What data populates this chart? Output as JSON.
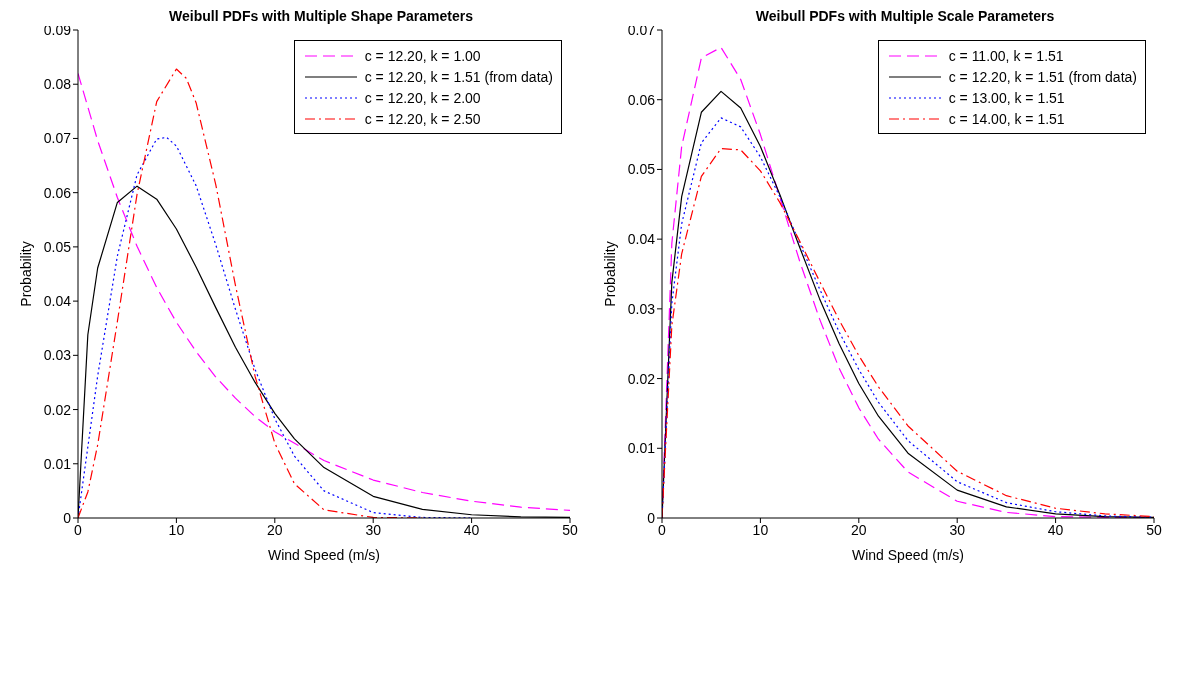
{
  "chart_data": [
    {
      "type": "line",
      "title": "Weibull PDFs with Multiple Shape Parameters",
      "xlabel": "Wind Speed (m/s)",
      "ylabel": "Probability",
      "xlim": [
        0,
        50
      ],
      "xticks": [
        0,
        10,
        20,
        30,
        40,
        50
      ],
      "ylim": [
        0,
        0.09
      ],
      "yticks": [
        0,
        0.01,
        0.02,
        0.03,
        0.04,
        0.05,
        0.06,
        0.07,
        0.08,
        0.09
      ],
      "legend": "top right",
      "marker": "none",
      "series": [
        {
          "name": "c = 12.20, k = 1.00",
          "color": "#ff00ff",
          "line_style": "dashed",
          "x": [
            0,
            2,
            4,
            6,
            8,
            10,
            12,
            14,
            16,
            18,
            20,
            25,
            30,
            35,
            40,
            45,
            50
          ],
          "values": [
            0.082,
            0.0696,
            0.0591,
            0.0501,
            0.0425,
            0.0361,
            0.0307,
            0.026,
            0.0221,
            0.0187,
            0.0159,
            0.0106,
            0.007,
            0.0047,
            0.0031,
            0.002,
            0.0014
          ]
        },
        {
          "name": "c = 12.20, k = 1.51 (from data)",
          "color": "#000000",
          "line_style": "solid",
          "x": [
            0,
            1,
            2,
            4,
            6,
            8,
            10,
            12,
            14,
            16,
            18,
            20,
            22,
            25,
            30,
            35,
            40,
            45,
            50
          ],
          "values": [
            0,
            0.0338,
            0.0461,
            0.0582,
            0.0612,
            0.0588,
            0.0533,
            0.0463,
            0.0388,
            0.0315,
            0.025,
            0.0193,
            0.0146,
            0.0093,
            0.004,
            0.0016,
            0.0006,
            0.0002,
            0.0001
          ]
        },
        {
          "name": "c = 12.20, k = 2.00",
          "color": "#0000ff",
          "line_style": "dotted",
          "x": [
            0,
            2,
            4,
            6,
            8,
            9,
            10,
            12,
            14,
            16,
            18,
            20,
            22,
            25,
            30,
            35,
            40
          ],
          "values": [
            0,
            0.0262,
            0.0483,
            0.0633,
            0.0699,
            0.0702,
            0.0686,
            0.0613,
            0.0504,
            0.0385,
            0.0274,
            0.0183,
            0.0114,
            0.005,
            0.001,
            0.0001,
            0
          ]
        },
        {
          "name": "c = 12.20, k = 2.50",
          "color": "#ff0000",
          "line_style": "dashdot",
          "x": [
            0,
            1,
            2,
            4,
            6,
            8,
            10,
            11,
            12,
            14,
            16,
            18,
            20,
            22,
            25,
            30,
            35
          ],
          "values": [
            0,
            0.0048,
            0.0135,
            0.0362,
            0.0597,
            0.0768,
            0.0828,
            0.0811,
            0.0766,
            0.0615,
            0.0429,
            0.0261,
            0.0138,
            0.0063,
            0.0015,
            0.0001,
            0
          ]
        }
      ]
    },
    {
      "type": "line",
      "title": "Weibull PDFs with Multiple Scale Parameters",
      "xlabel": "Wind Speed (m/s)",
      "ylabel": "Probability",
      "xlim": [
        0,
        50
      ],
      "xticks": [
        0,
        10,
        20,
        30,
        40,
        50
      ],
      "ylim": [
        0,
        0.07
      ],
      "yticks": [
        0,
        0.01,
        0.02,
        0.03,
        0.04,
        0.05,
        0.06,
        0.07
      ],
      "legend": "top right",
      "marker": "none",
      "x": [
        0,
        1,
        2,
        4,
        6,
        8,
        10,
        12,
        14,
        16,
        18,
        20,
        22,
        25,
        30,
        35,
        40,
        45,
        50
      ],
      "series": [
        {
          "name": "c = 11.00, k = 1.51",
          "color": "#ff00ff",
          "line_style": "dashed",
          "values": [
            0,
            0.0394,
            0.0533,
            0.066,
            0.0675,
            0.0629,
            0.055,
            0.0459,
            0.0368,
            0.0286,
            0.0215,
            0.0158,
            0.0113,
            0.0066,
            0.0024,
            0.0008,
            0.0002,
            0.0001,
            0
          ]
        },
        {
          "name": "c = 12.20, k = 1.51 (from data)",
          "color": "#000000",
          "line_style": "solid",
          "values": [
            0,
            0.0338,
            0.0461,
            0.0582,
            0.0612,
            0.0588,
            0.0533,
            0.0463,
            0.0388,
            0.0315,
            0.025,
            0.0193,
            0.0146,
            0.0093,
            0.004,
            0.0016,
            0.0006,
            0.0002,
            0.0001
          ]
        },
        {
          "name": "c = 13.00, k = 1.51",
          "color": "#0000ff",
          "line_style": "dotted",
          "values": [
            0,
            0.0308,
            0.0422,
            0.0538,
            0.0574,
            0.0561,
            0.0518,
            0.046,
            0.0394,
            0.0329,
            0.0267,
            0.0213,
            0.0166,
            0.0111,
            0.0052,
            0.0022,
            0.0009,
            0.0003,
            0.0001
          ]
        },
        {
          "name": "c = 14.00, k = 1.51",
          "color": "#ff0000",
          "line_style": "dashdot",
          "values": [
            0,
            0.0276,
            0.0379,
            0.049,
            0.053,
            0.0528,
            0.0498,
            0.0452,
            0.0397,
            0.034,
            0.0284,
            0.0233,
            0.0188,
            0.0132,
            0.0067,
            0.0032,
            0.0014,
            0.0006,
            0.0002
          ]
        }
      ]
    }
  ]
}
